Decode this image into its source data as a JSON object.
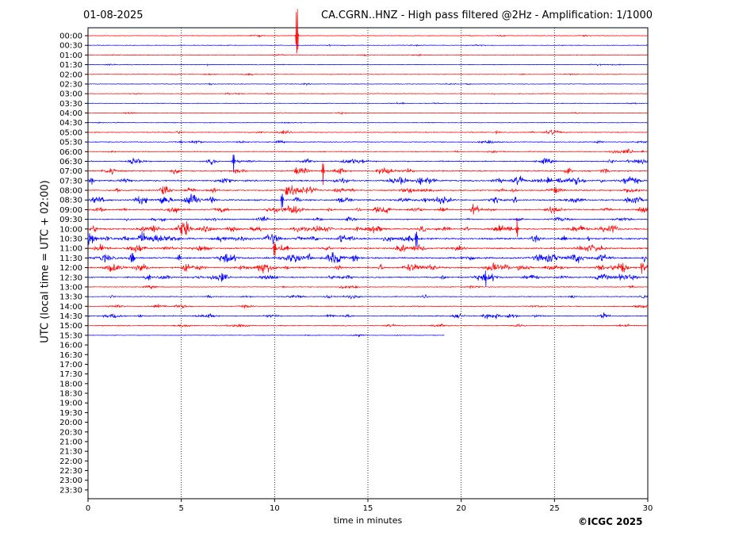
{
  "date": "01-08-2025",
  "title": "CA.CGRN..HNZ - High pass filtered @2Hz - Amplification: 1/1000",
  "copyright": "©ICGC 2025",
  "chart_data": {
    "type": "line",
    "title": "CA.CGRN..HNZ - High pass filtered @2Hz - Amplification: 1/1000",
    "xlabel": "time in minutes",
    "ylabel": "UTC (local time = UTC + 02:00)",
    "xlim": [
      0,
      30
    ],
    "x_ticks": [
      "0",
      "5",
      "10",
      "15",
      "20",
      "25",
      "30"
    ],
    "vertical_grid": "dotted at 5-minute intervals",
    "row_labels": [
      "00:00",
      "00:30",
      "01:00",
      "01:30",
      "02:00",
      "02:30",
      "03:00",
      "03:30",
      "04:00",
      "04:30",
      "05:00",
      "05:30",
      "06:00",
      "06:30",
      "07:00",
      "07:30",
      "08:00",
      "08:30",
      "09:00",
      "09:30",
      "10:00",
      "10:30",
      "11:00",
      "11:30",
      "12:00",
      "12:30",
      "13:00",
      "13:30",
      "14:00",
      "14:30",
      "15:00",
      "15:30",
      "16:00",
      "16:30",
      "17:00",
      "17:30",
      "18:00",
      "18:30",
      "19:00",
      "19:30",
      "20:00",
      "20:30",
      "21:00",
      "21:30",
      "22:00",
      "22:30",
      "23:00",
      "23:30"
    ],
    "trace_colors": [
      "#ff0000",
      "#0000ff"
    ],
    "recorded_rows": 32,
    "last_row_end_minute": 19.1,
    "activity": [
      1,
      1,
      1,
      1,
      1,
      1,
      1,
      1,
      1,
      1,
      2,
      2,
      2,
      3,
      4,
      5,
      4,
      5,
      4,
      3,
      5,
      6,
      5,
      6,
      5,
      4,
      2,
      2,
      2,
      3,
      2,
      1
    ],
    "events": [
      {
        "row": "00:00",
        "minute": 11.2,
        "amplitude": 3.5
      },
      {
        "row": "06:30",
        "minute": 7.8,
        "amplitude": 1.0
      },
      {
        "row": "07:00",
        "minute": 12.6,
        "amplitude": 1.2
      },
      {
        "row": "08:30",
        "minute": 10.4,
        "amplitude": 1.0
      },
      {
        "row": "10:30",
        "minute": 17.6,
        "amplitude": 1.2
      },
      {
        "row": "11:00",
        "minute": 10.0,
        "amplitude": 1.0
      },
      {
        "row": "12:30",
        "minute": 21.3,
        "amplitude": 1.0
      },
      {
        "row": "10:00",
        "minute": 23.0,
        "amplitude": 1.0
      }
    ]
  }
}
